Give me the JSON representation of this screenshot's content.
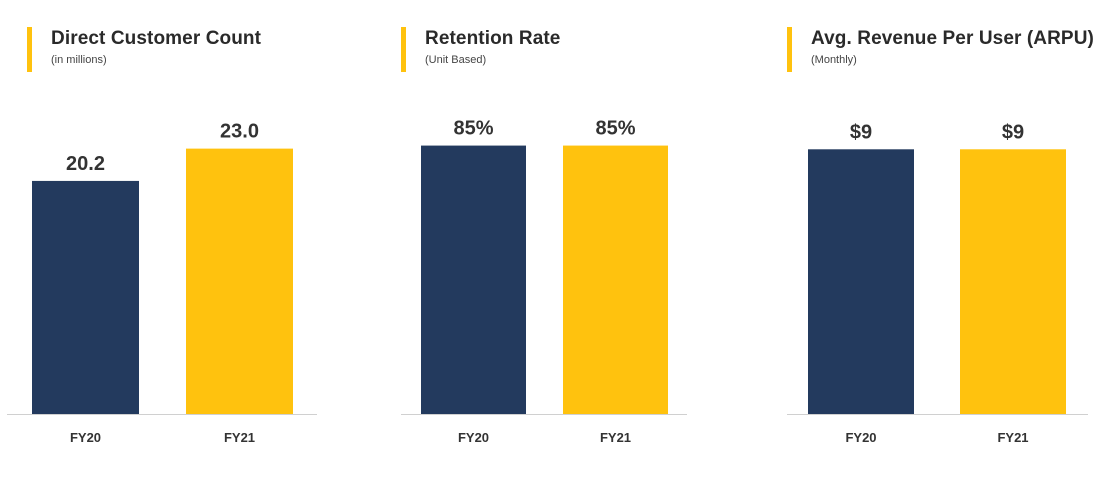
{
  "colors": {
    "accent": "#FFC20E",
    "fy20": "#233A5E",
    "fy21": "#FFC20E",
    "baseline": "#D0D0D0",
    "text": "#333333"
  },
  "panels": [
    {
      "title": "Direct Customer Count",
      "subtitle": "(in millions)"
    },
    {
      "title": "Retention Rate",
      "subtitle": "(Unit Based)"
    },
    {
      "title": "Avg. Revenue Per User (ARPU)",
      "subtitle": "(Monthly)"
    }
  ],
  "chart_data": [
    {
      "type": "bar",
      "title": "Direct Customer Count",
      "subtitle": "(in millions)",
      "categories": [
        "FY20",
        "FY21"
      ],
      "values": [
        20.2,
        23.0
      ],
      "value_labels": [
        "20.2",
        "23.0"
      ],
      "ylim": [
        0,
        26.0
      ],
      "grid": false,
      "legend": "none"
    },
    {
      "type": "bar",
      "title": "Retention Rate",
      "subtitle": "(Unit Based)",
      "categories": [
        "FY20",
        "FY21"
      ],
      "values": [
        85,
        85
      ],
      "value_labels": [
        "85%",
        "85%"
      ],
      "ylim": [
        0,
        95
      ],
      "grid": false,
      "legend": "none"
    },
    {
      "type": "bar",
      "title": "Avg. Revenue Per User (ARPU)",
      "subtitle": "(Monthly)",
      "categories": [
        "FY20",
        "FY21"
      ],
      "values": [
        9,
        9
      ],
      "value_labels": [
        "$9",
        "$9"
      ],
      "ylim": [
        0,
        10.2
      ],
      "grid": false,
      "legend": "none"
    }
  ]
}
